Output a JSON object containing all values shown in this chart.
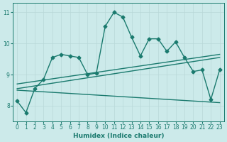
{
  "xlabel": "Humidex (Indice chaleur)",
  "background_color": "#cceaea",
  "line_color": "#1a7a6e",
  "xlim": [
    -0.5,
    23.5
  ],
  "ylim": [
    7.5,
    11.3
  ],
  "yticks": [
    8,
    9,
    10,
    11
  ],
  "xticks": [
    0,
    1,
    2,
    3,
    4,
    5,
    6,
    7,
    8,
    9,
    10,
    11,
    12,
    13,
    14,
    15,
    16,
    17,
    18,
    19,
    20,
    21,
    22,
    23
  ],
  "main_x": [
    0,
    1,
    2,
    3,
    4,
    5,
    6,
    7,
    8,
    9,
    10,
    11,
    12,
    13,
    14,
    15,
    16,
    17,
    18,
    19,
    20,
    21,
    22,
    23
  ],
  "main_y": [
    8.15,
    7.78,
    8.55,
    8.85,
    9.55,
    9.65,
    9.6,
    9.55,
    9.0,
    9.05,
    10.55,
    11.0,
    10.85,
    10.2,
    9.6,
    10.15,
    10.15,
    9.75,
    10.05,
    9.55,
    9.1,
    9.15,
    8.2,
    9.15
  ],
  "trend1_x": [
    0,
    23
  ],
  "trend1_y": [
    8.55,
    9.55
  ],
  "trend2_x": [
    0,
    23
  ],
  "trend2_y": [
    8.7,
    9.65
  ],
  "trend3_x": [
    0,
    23
  ],
  "trend3_y": [
    8.5,
    8.1
  ],
  "grid_color": "#b8d8d8",
  "marker_style": "D",
  "marker_size": 2.5,
  "line_width": 1.0
}
